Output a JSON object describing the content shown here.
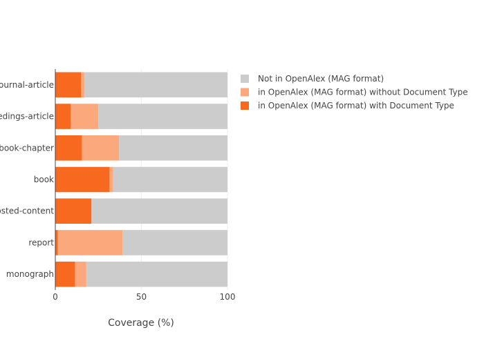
{
  "chart_data": {
    "type": "bar",
    "orientation": "horizontal",
    "stacked": true,
    "categories": [
      "journal-article",
      "proceedings-article",
      "book-chapter",
      "book",
      "posted-content",
      "report",
      "monograph"
    ],
    "series": [
      {
        "name": "in OpenAlex (MAG format) with Document Type",
        "values": [
          15,
          9,
          15.5,
          31.5,
          21,
          1.5,
          11.5
        ],
        "color": "#f7691f"
      },
      {
        "name": "in OpenAlex (MAG format) without Document Type",
        "values": [
          2,
          16,
          21.5,
          2,
          0,
          37.5,
          6.5
        ],
        "color": "#fba87c"
      },
      {
        "name": "Not in OpenAlex (MAG format)",
        "values": [
          83,
          75,
          63,
          66.5,
          79,
          61,
          82
        ],
        "color": "#cccccc"
      }
    ],
    "x_ticks": [
      0,
      50,
      100
    ],
    "xlabel": "Coverage (%)",
    "ylabel": "",
    "title": "",
    "xlim": [
      0,
      100
    ],
    "grid": true,
    "legend_position": "top-right",
    "legend_order": [
      "Not in OpenAlex (MAG format)",
      "in OpenAlex (MAG format) without Document Type",
      "in OpenAlex (MAG format) with Document Type"
    ]
  }
}
